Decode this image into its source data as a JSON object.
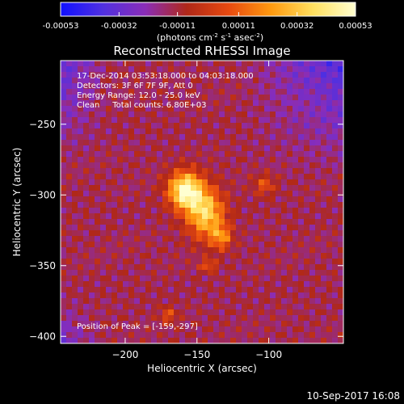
{
  "chart_data": {
    "type": "heatmap",
    "title": "Reconstructed RHESSI Image",
    "xlabel": "Heliocentric X (arcsec)",
    "ylabel": "Heliocentric Y (arcsec)",
    "xlim": [
      -245,
      -48
    ],
    "ylim": [
      -405,
      -205
    ],
    "x_ticks": [
      -200,
      -150,
      -100
    ],
    "y_ticks": [
      -250,
      -300,
      -350,
      -400
    ],
    "colorbar": {
      "label_prefix": "(photons cm",
      "label_exp1": "-2",
      "label_mid": " s",
      "label_exp2": "-1",
      "label_mid2": " asec",
      "label_exp3": "-2",
      "label_suffix": ")",
      "range": [
        -0.00053,
        0.00053
      ],
      "ticks": [
        -0.00053,
        -0.00032,
        -0.00011,
        0.00011,
        0.00032,
        0.00053
      ],
      "tick_labels": [
        "-0.00053",
        "-0.00032",
        "-0.00011",
        "0.00011",
        "0.00032",
        "0.00053"
      ],
      "colormap_stops": [
        "#1010ff",
        "#5030e0",
        "#8a2db8",
        "#b02818",
        "#e84a10",
        "#ff9a10",
        "#ffe060",
        "#ffffd0"
      ]
    },
    "info_lines": [
      "17-Dec-2014 03:53:18.000 to 04:03:18.000",
      "Detectors: 3F 6F 7F 9F, Att 0",
      "Energy Range: 12.0 - 25.0 keV",
      "Clean     Total counts: 6.80E+03"
    ],
    "peak_label": "Position of Peak = [-159,-297]",
    "peak": [
      -159,
      -297
    ],
    "sources": [
      {
        "x": -158,
        "y": -297,
        "amp": 1.0,
        "sx": 8,
        "sy": 9
      },
      {
        "x": -144,
        "y": -313,
        "amp": 0.75,
        "sx": 9,
        "sy": 12
      },
      {
        "x": -133,
        "y": -330,
        "amp": 0.45,
        "sx": 5,
        "sy": 6
      },
      {
        "x": -142,
        "y": -350,
        "amp": 0.35,
        "sx": 4,
        "sy": 3
      },
      {
        "x": -103,
        "y": -293,
        "amp": 0.3,
        "sx": 5,
        "sy": 5
      },
      {
        "x": -170,
        "y": -385,
        "amp": 0.3,
        "sx": 4,
        "sy": 4
      }
    ],
    "background_level": 0.38,
    "negative_region": {
      "description_side": "upper-right and upper-left corners"
    }
  },
  "footer": {
    "timestamp": "10-Sep-2017 16:08"
  }
}
